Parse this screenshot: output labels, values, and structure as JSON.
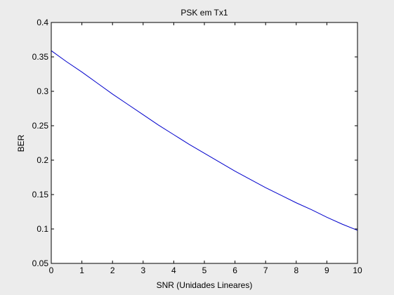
{
  "figure": {
    "background": "#ececec",
    "axes_background": "#ffffff",
    "line_color": "#0000cc"
  },
  "chart_data": {
    "type": "line",
    "title": "PSK em Tx1",
    "xlabel": "SNR (Unidades Lineares)",
    "ylabel": "BER",
    "xlim": [
      0,
      10
    ],
    "ylim": [
      0.05,
      0.4
    ],
    "xticks": [
      0,
      1,
      2,
      3,
      4,
      5,
      6,
      7,
      8,
      9,
      10
    ],
    "xtick_labels": [
      "0",
      "1",
      "2",
      "3",
      "4",
      "5",
      "6",
      "7",
      "8",
      "9",
      "10"
    ],
    "yticks": [
      0.05,
      0.1,
      0.15,
      0.2,
      0.25,
      0.3,
      0.35,
      0.4
    ],
    "ytick_labels": [
      "0.05",
      "0.1",
      "0.15",
      "0.2",
      "0.25",
      "0.3",
      "0.35",
      "0.4"
    ],
    "grid": false,
    "legend": "none",
    "series": [
      {
        "x": [
          0,
          0.5,
          1,
          1.5,
          2,
          2.5,
          3,
          3.5,
          4,
          4.5,
          5,
          5.5,
          6,
          6.5,
          7,
          7.5,
          8,
          8.5,
          9,
          9.5,
          10
        ],
        "y": [
          0.359,
          0.343,
          0.328,
          0.312,
          0.296,
          0.281,
          0.266,
          0.251,
          0.237,
          0.223,
          0.21,
          0.197,
          0.184,
          0.172,
          0.16,
          0.149,
          0.138,
          0.128,
          0.117,
          0.107,
          0.098
        ]
      }
    ]
  }
}
